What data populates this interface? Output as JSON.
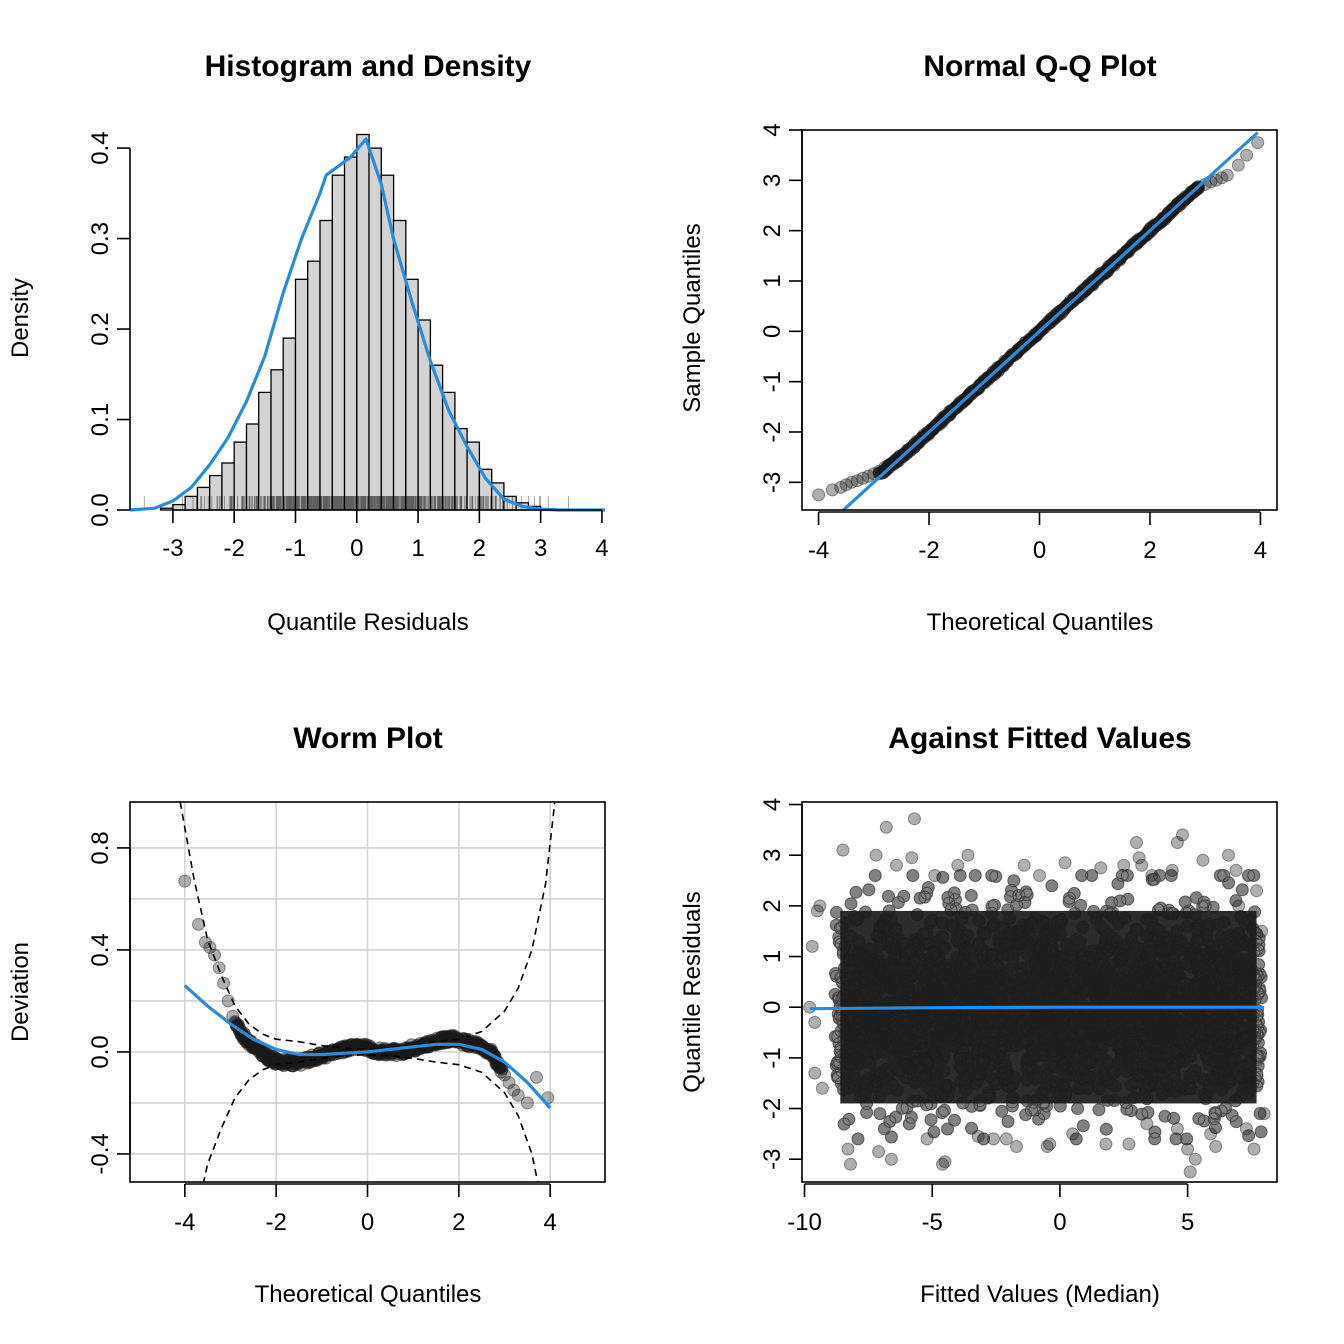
{
  "colors": {
    "curve": "#2A8BDB",
    "points": "#1a1a1a",
    "bars_fill": "#D3D3D3",
    "grid": "#D3D3D3"
  },
  "chart_data": [
    {
      "type": "bar",
      "id": "hist",
      "title": "Histogram and Density",
      "xlabel": "Quantile Residuals",
      "ylabel": "Density",
      "xlim": [
        -3.7,
        4.05
      ],
      "ylim": [
        0,
        0.42
      ],
      "xticks": [
        -3,
        -2,
        -1,
        0,
        1,
        2,
        3,
        4
      ],
      "xtick_labels": [
        "-3",
        "-2",
        "-1",
        "0",
        "1",
        "2",
        "3",
        "4"
      ],
      "yticks": [
        0.0,
        0.1,
        0.2,
        0.3,
        0.4
      ],
      "ytick_labels": [
        "0.0",
        "0.1",
        "0.2",
        "0.3",
        "0.4"
      ],
      "bin_edges": [
        -3.2,
        -3.0,
        -2.8,
        -2.6,
        -2.4,
        -2.2,
        -2.0,
        -1.8,
        -1.6,
        -1.4,
        -1.2,
        -1.0,
        -0.8,
        -0.6,
        -0.4,
        -0.2,
        0.0,
        0.2,
        0.4,
        0.6,
        0.8,
        1.0,
        1.2,
        1.4,
        1.6,
        1.8,
        2.0,
        2.2,
        2.4,
        2.6,
        2.8,
        3.0,
        3.2
      ],
      "values": [
        0.002,
        0.006,
        0.015,
        0.025,
        0.038,
        0.052,
        0.075,
        0.095,
        0.13,
        0.155,
        0.19,
        0.255,
        0.275,
        0.32,
        0.37,
        0.39,
        0.415,
        0.4,
        0.37,
        0.32,
        0.255,
        0.21,
        0.16,
        0.13,
        0.09,
        0.075,
        0.045,
        0.03,
        0.015,
        0.008,
        0.004,
        0.001
      ],
      "density_x": [
        -3.7,
        -3.3,
        -3.0,
        -2.7,
        -2.4,
        -2.1,
        -1.8,
        -1.5,
        -1.2,
        -0.9,
        -0.6,
        -0.5,
        -0.3,
        -0.1,
        0.15,
        0.4,
        0.6,
        0.9,
        1.2,
        1.5,
        1.8,
        2.1,
        2.4,
        2.7,
        3.0,
        3.3,
        3.7,
        4.05
      ],
      "density_y": [
        0.0,
        0.002,
        0.01,
        0.025,
        0.05,
        0.08,
        0.12,
        0.17,
        0.24,
        0.3,
        0.35,
        0.37,
        0.38,
        0.39,
        0.41,
        0.36,
        0.3,
        0.23,
        0.165,
        0.11,
        0.07,
        0.035,
        0.012,
        0.004,
        0.001,
        0.0,
        0.0,
        0.0
      ],
      "grid": false
    },
    {
      "type": "scatter",
      "id": "qq",
      "title": "Normal Q-Q Plot",
      "xlabel": "Theoretical Quantiles",
      "ylabel": "Sample Quantiles",
      "xlim": [
        -4.3,
        4.3
      ],
      "ylim": [
        -3.55,
        4.0
      ],
      "xticks": [
        -4,
        -2,
        0,
        2,
        4
      ],
      "xtick_labels": [
        "-4",
        "-2",
        "0",
        "2",
        "4"
      ],
      "yticks": [
        -3,
        -2,
        -1,
        0,
        1,
        2,
        3,
        4
      ],
      "ytick_labels": [
        "-3",
        "-2",
        "-1",
        "0",
        "1",
        "2",
        "3",
        "4"
      ],
      "points_x": [
        -4.0,
        -3.75,
        -3.6,
        -3.5,
        -3.4,
        -3.3,
        -3.2,
        -3.1,
        -3.0,
        -2.9,
        -2.8,
        -2.6,
        -2.4,
        -2.2,
        -2.0,
        -1.6,
        -1.2,
        -0.8,
        -0.4,
        0.0,
        0.4,
        0.8,
        1.2,
        1.6,
        2.0,
        2.2,
        2.4,
        2.6,
        2.8,
        3.0,
        3.1,
        3.2,
        3.3,
        3.4,
        3.6,
        3.75,
        3.95
      ],
      "points_y": [
        -3.25,
        -3.15,
        -3.1,
        -3.05,
        -3.0,
        -2.97,
        -2.92,
        -2.88,
        -2.83,
        -2.78,
        -2.7,
        -2.55,
        -2.38,
        -2.2,
        -2.0,
        -1.6,
        -1.2,
        -0.8,
        -0.4,
        0.0,
        0.4,
        0.8,
        1.2,
        1.6,
        2.0,
        2.2,
        2.4,
        2.6,
        2.78,
        2.92,
        2.97,
        3.0,
        3.05,
        3.1,
        3.3,
        3.5,
        3.75
      ],
      "line": {
        "x": [
          -3.55,
          3.95
        ],
        "y": [
          -3.55,
          3.95
        ]
      },
      "grid": false
    },
    {
      "type": "scatter",
      "id": "worm",
      "title": "Worm Plot",
      "xlabel": "Theoretical Quantiles",
      "ylabel": "Deviation",
      "xlim": [
        -5.2,
        5.2
      ],
      "ylim": [
        -0.51,
        0.98
      ],
      "xticks": [
        -4,
        -2,
        0,
        2,
        4
      ],
      "xtick_labels": [
        "-4",
        "-2",
        "0",
        "2",
        "4"
      ],
      "yticks": [
        -0.4,
        0.0,
        0.4,
        0.8
      ],
      "ytick_labels": [
        "-0.4",
        "0.0",
        "0.4",
        "0.8"
      ],
      "grid_x": [
        -4,
        -2,
        0,
        2,
        4
      ],
      "grid_y": [
        -0.4,
        -0.2,
        0.0,
        0.2,
        0.4,
        0.6,
        0.8
      ],
      "points_x": [
        -4.0,
        -3.7,
        -3.55,
        -3.45,
        -3.35,
        -3.25,
        -3.15,
        -3.05,
        -2.95,
        -2.85,
        -2.75,
        -2.65,
        -2.55,
        -2.4,
        -2.25,
        -2.1,
        -1.9,
        -1.7,
        -1.5,
        -1.3,
        -1.1,
        -0.9,
        -0.7,
        -0.5,
        -0.3,
        -0.1,
        0.1,
        0.3,
        0.5,
        0.7,
        0.9,
        1.1,
        1.3,
        1.5,
        1.7,
        1.9,
        2.1,
        2.3,
        2.5,
        2.6,
        2.7,
        2.8,
        2.9,
        3.0,
        3.1,
        3.2,
        3.3,
        3.5,
        3.7,
        3.95
      ],
      "points_y": [
        0.67,
        0.5,
        0.43,
        0.41,
        0.38,
        0.33,
        0.27,
        0.2,
        0.14,
        0.1,
        0.07,
        0.05,
        0.03,
        0.01,
        -0.01,
        -0.03,
        -0.04,
        -0.04,
        -0.04,
        -0.03,
        -0.02,
        -0.01,
        0.0,
        0.01,
        0.02,
        0.02,
        0.01,
        0.0,
        0.0,
        0.0,
        0.01,
        0.02,
        0.03,
        0.04,
        0.05,
        0.05,
        0.04,
        0.03,
        0.02,
        0.01,
        0.0,
        -0.03,
        -0.06,
        -0.09,
        -0.12,
        -0.15,
        -0.17,
        -0.2,
        -0.1,
        -0.18
      ],
      "smooth_x": [
        -4.0,
        -3.5,
        -3.0,
        -2.5,
        -2.0,
        -1.5,
        -1.0,
        -0.5,
        0.0,
        0.5,
        1.0,
        1.5,
        2.0,
        2.5,
        3.0,
        3.5,
        4.0
      ],
      "smooth_y": [
        0.26,
        0.18,
        0.11,
        0.05,
        0.01,
        -0.01,
        -0.01,
        -0.005,
        0.0,
        0.01,
        0.02,
        0.03,
        0.03,
        0.01,
        -0.04,
        -0.12,
        -0.22
      ],
      "band_upper_x": [
        -4.1,
        -3.8,
        -3.5,
        -3.2,
        -2.9,
        -2.6,
        -2.3,
        -2.0,
        -1.5,
        -1.0,
        -0.5,
        0.0,
        0.5,
        1.0,
        1.5,
        2.0,
        2.5,
        3.0,
        3.3,
        3.6,
        3.9,
        4.1
      ],
      "band_upper_y": [
        0.98,
        0.68,
        0.44,
        0.3,
        0.18,
        0.11,
        0.07,
        0.05,
        0.04,
        0.025,
        0.015,
        0.01,
        0.015,
        0.025,
        0.04,
        0.05,
        0.08,
        0.16,
        0.25,
        0.4,
        0.66,
        0.98
      ],
      "grid": true
    },
    {
      "type": "scatter",
      "id": "fitted",
      "title": "Against Fitted Values",
      "xlabel": "Fitted Values (Median)",
      "ylabel": "Quantile Residuals",
      "xlim": [
        -10.1,
        8.5
      ],
      "ylim": [
        -3.45,
        4.05
      ],
      "xticks": [
        -10,
        -5,
        0,
        5
      ],
      "xtick_labels": [
        "-10",
        "-5",
        "0",
        "5"
      ],
      "yticks": [
        -3,
        -2,
        -1,
        0,
        1,
        2,
        3,
        4
      ],
      "ytick_labels": [
        "-3",
        "-2",
        "-1",
        "0",
        "1",
        "2",
        "3",
        "4"
      ],
      "points_x": [
        -8.2,
        -6.8,
        -6.6,
        -5.7,
        -5.2,
        -4.6,
        -3.6,
        -2.1,
        -1.4,
        -0.4,
        0.2,
        1.8,
        3.0,
        3.1,
        3.2,
        3.4,
        4.6,
        4.8,
        5.1,
        5.6,
        6.1,
        6.6,
        7.0,
        7.3,
        -9.5,
        -9.7,
        -8.5,
        -7.2,
        -6.4,
        -5.8,
        -4.9,
        -4.0,
        -3.2,
        -1.7,
        -0.8,
        0.5,
        1.6,
        2.7,
        3.6,
        4.4,
        5.0,
        5.9,
        6.9,
        7.6,
        -9.3,
        -9.6,
        -9.4,
        -9.8,
        -9.6,
        7.9,
        8.0,
        7.7,
        -8.3,
        -7.1,
        -4.5,
        -2.6,
        -0.5,
        2.5,
        4.6,
        5.3
      ],
      "points_y": [
        -3.1,
        3.55,
        -3.0,
        3.72,
        -2.6,
        -3.1,
        3.0,
        -2.6,
        2.8,
        -2.7,
        2.85,
        -2.7,
        3.25,
        2.95,
        2.8,
        -2.3,
        3.25,
        3.4,
        -3.25,
        2.9,
        -2.75,
        3.0,
        2.0,
        -2.4,
        1.9,
        1.2,
        3.1,
        3.0,
        2.8,
        2.95,
        2.6,
        2.8,
        -2.55,
        -2.75,
        2.6,
        -2.5,
        2.75,
        -2.7,
        2.6,
        2.7,
        -2.8,
        -2.5,
        2.7,
        -2.8,
        -1.6,
        -1.3,
        2.0,
        0.0,
        -0.3,
        1.5,
        -2.1,
        2.3,
        -2.8,
        -2.85,
        -3.05,
        -2.6,
        -2.75,
        2.8,
        -2.4,
        -3.0
      ],
      "cloud_x_range": [
        -8.8,
        7.9
      ],
      "cloud_y_range": [
        -2.55,
        2.55
      ],
      "smooth_x": [
        -9.8,
        -5.0,
        0.0,
        5.0,
        8.0
      ],
      "smooth_y": [
        -0.03,
        -0.01,
        0.0,
        0.0,
        0.0
      ],
      "grid": false
    }
  ]
}
